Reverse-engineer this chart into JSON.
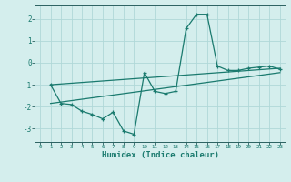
{
  "title": "",
  "xlabel": "Humidex (Indice chaleur)",
  "ylabel": "",
  "bg_color": "#d4eeed",
  "grid_color": "#b0d8d8",
  "line_color": "#1a7a6e",
  "xlim": [
    -0.5,
    23.5
  ],
  "ylim": [
    -3.6,
    2.6
  ],
  "yticks": [
    -3,
    -2,
    -1,
    0,
    1,
    2
  ],
  "xticks": [
    0,
    1,
    2,
    3,
    4,
    5,
    6,
    7,
    8,
    9,
    10,
    11,
    12,
    13,
    14,
    15,
    16,
    17,
    18,
    19,
    20,
    21,
    22,
    23
  ],
  "line1_x": [
    1,
    2,
    3,
    4,
    5,
    6,
    7,
    8,
    9,
    10,
    11,
    12,
    13,
    14,
    15,
    16,
    17,
    18,
    19,
    20,
    21,
    22,
    23
  ],
  "line1_y": [
    -1.0,
    -1.85,
    -1.9,
    -2.2,
    -2.35,
    -2.55,
    -2.25,
    -3.1,
    -3.25,
    -0.45,
    -1.3,
    -1.4,
    -1.3,
    1.55,
    2.2,
    2.2,
    -0.15,
    -0.35,
    -0.35,
    -0.25,
    -0.2,
    -0.15,
    -0.3
  ],
  "line2_x": [
    1,
    23
  ],
  "line2_y": [
    -1.0,
    -0.25
  ],
  "line3_x": [
    1,
    23
  ],
  "line3_y": [
    -1.85,
    -0.45
  ]
}
